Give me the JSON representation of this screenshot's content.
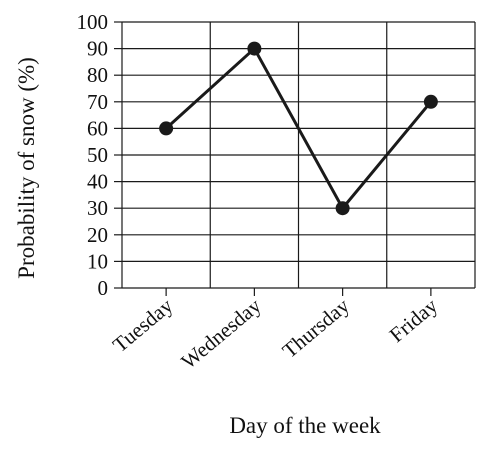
{
  "chart_data": {
    "type": "line",
    "categories": [
      "Tuesday",
      "Wednesday",
      "Thursday",
      "Friday"
    ],
    "series": [
      {
        "values": [
          60,
          90,
          30,
          70
        ]
      }
    ],
    "xlabel": "Day of the week",
    "ylabel": "Probability of snow (%)",
    "ylim": [
      0,
      100
    ],
    "yticks": [
      0,
      10,
      20,
      30,
      40,
      50,
      60,
      70,
      80,
      90,
      100
    ],
    "grid": true,
    "line_color": "#1a1a1a",
    "marker_color": "#1a1a1a",
    "grid_color": "#1a1a1a"
  }
}
